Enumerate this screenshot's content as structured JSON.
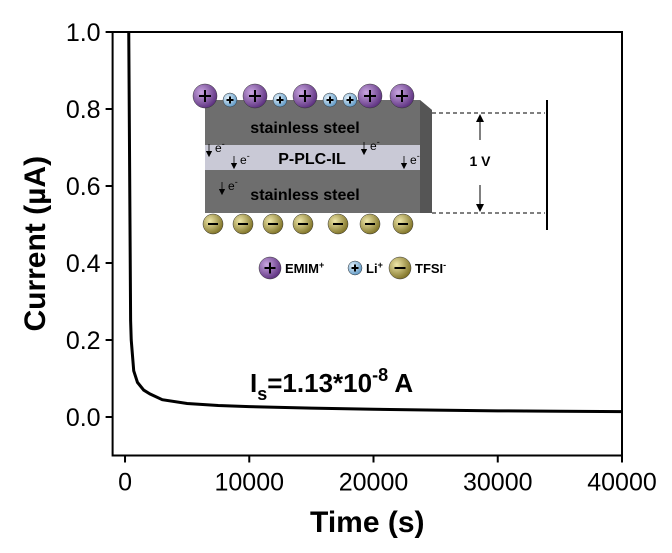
{
  "chart_data": {
    "type": "line",
    "x_label": "Time (s)",
    "y_label": "Current (µA)",
    "x": [
      300,
      400,
      450,
      500,
      700,
      1000,
      1500,
      2000,
      3000,
      5000,
      7500,
      10000,
      15000,
      20000,
      25000,
      30000,
      35000,
      40000
    ],
    "series": [
      {
        "color": "#000000",
        "values": [
          1.0,
          0.5,
          0.25,
          0.2,
          0.12,
          0.09,
          0.07,
          0.06,
          0.045,
          0.035,
          0.03,
          0.027,
          0.023,
          0.02,
          0.018,
          0.016,
          0.015,
          0.014
        ]
      }
    ],
    "xlim": [
      -1000,
      40000
    ],
    "xticks": [
      0,
      10000,
      20000,
      30000,
      40000
    ],
    "ylim": [
      -0.1,
      1.0
    ],
    "yticks": [
      {
        "value": 0,
        "label": "0.0"
      },
      0.2,
      0.4,
      0.6,
      0.8,
      {
        "value": 1,
        "label": "1.0"
      }
    ],
    "annotation": {
      "base": "I",
      "sub": "s",
      "main": "=1.13*10",
      "sup": "-8",
      "unit": " A"
    },
    "inset": {
      "top_layer": "stainless steel",
      "middle_layer": "P-PLC-IL",
      "bottom_layer": "stainless steel",
      "voltage": "1 V",
      "electron": {
        "base": "e",
        "sup": "-"
      },
      "ions": [
        {
          "name": "EMIM",
          "charge": "+",
          "color": "#7b4a9e"
        },
        {
          "name": "Li",
          "charge": "+",
          "color": "#7fb3d9"
        },
        {
          "name": "TFSI",
          "charge": "-",
          "color": "#a89a3c"
        }
      ]
    }
  }
}
